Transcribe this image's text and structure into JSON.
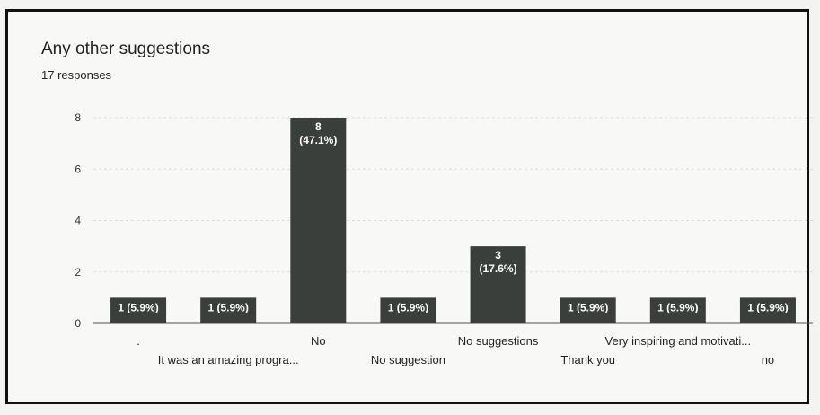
{
  "title": "Any other suggestions",
  "subtitle": "17 responses",
  "colors": {
    "bar": "#3a3f3b",
    "grid": "#dcdcdc",
    "axis": "#555555"
  },
  "chart_data": {
    "type": "bar",
    "title": "Any other suggestions",
    "categories": [
      ".",
      "It was an amazing progra...",
      "No",
      "No suggestion",
      "No suggestions",
      "Thank you",
      "Very inspiring and motivati...",
      "no"
    ],
    "values": [
      1,
      1,
      8,
      1,
      3,
      1,
      1,
      1
    ],
    "data_labels": [
      "1 (5.9%)",
      "1 (5.9%)",
      "8\n(47.1%)",
      "1 (5.9%)",
      "3\n(17.6%)",
      "1 (5.9%)",
      "1 (5.9%)",
      "1 (5.9%)"
    ],
    "ylim": [
      0,
      8
    ],
    "yticks": [
      0,
      2,
      4,
      6,
      8
    ],
    "grid": true,
    "xlabel": "",
    "ylabel": ""
  }
}
